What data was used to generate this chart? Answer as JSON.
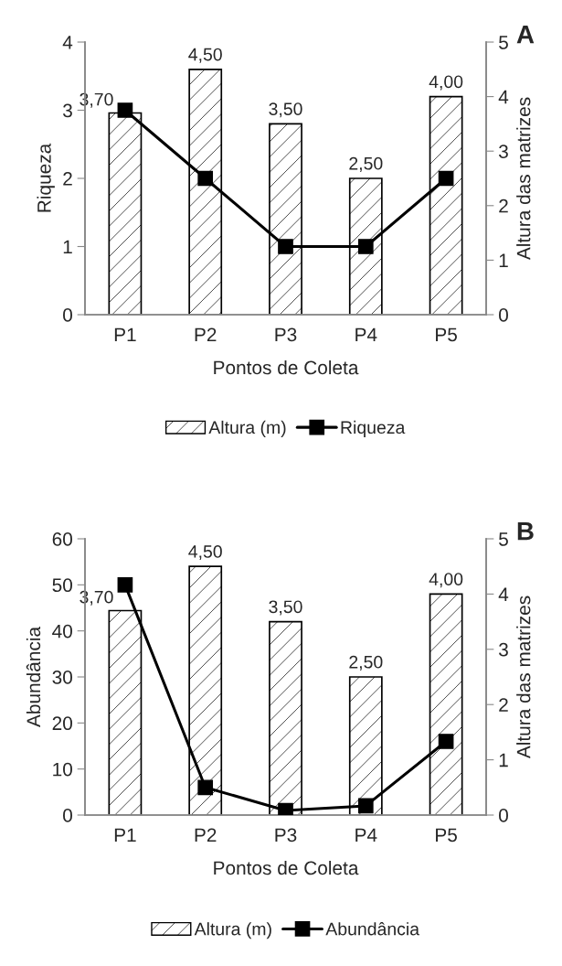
{
  "chart_data": [
    {
      "type": "bar",
      "title": "A",
      "categories": [
        "P1",
        "P2",
        "P3",
        "P4",
        "P5"
      ],
      "xlabel": "Pontos de Coleta",
      "ylabel": "Riqueza",
      "y2label": "Altura das matrizes",
      "ylim": [
        0,
        4
      ],
      "yticks": [
        0,
        1,
        2,
        3,
        4
      ],
      "y2lim": [
        0,
        5
      ],
      "y2ticks": [
        0,
        1,
        2,
        3,
        4,
        5
      ],
      "legend": "bottom",
      "grid": false,
      "series": [
        {
          "name": "Altura (m)",
          "axis": "y2",
          "color": "#000000",
          "values": [
            3.7,
            4.5,
            3.5,
            2.5,
            4.0
          ],
          "value_labels": [
            "3,70",
            "4,50",
            "3,50",
            "2,50",
            "4,00"
          ]
        },
        {
          "name": "Riqueza",
          "type": "line",
          "axis": "y",
          "color": "#000000",
          "marker": "square",
          "line_style": "solid",
          "values": [
            3,
            2,
            1,
            1,
            2
          ]
        }
      ]
    },
    {
      "type": "bar",
      "title": "B",
      "categories": [
        "P1",
        "P2",
        "P3",
        "P4",
        "P5"
      ],
      "xlabel": "Pontos de Coleta",
      "ylabel": "Abundância",
      "y2label": "Altura das matrizes",
      "ylim": [
        0,
        60
      ],
      "yticks": [
        0,
        10,
        20,
        30,
        40,
        50,
        60
      ],
      "y2lim": [
        0,
        5
      ],
      "y2ticks": [
        0,
        1,
        2,
        3,
        4,
        5
      ],
      "legend": "bottom",
      "grid": false,
      "series": [
        {
          "name": "Altura (m)",
          "axis": "y2",
          "color": "#000000",
          "values": [
            3.7,
            4.5,
            3.5,
            2.5,
            4.0
          ],
          "value_labels": [
            "3,70",
            "4,50",
            "3,50",
            "2,50",
            "4,00"
          ]
        },
        {
          "name": "Abundância",
          "type": "line",
          "axis": "y",
          "color": "#000000",
          "marker": "square",
          "line_style": "solid",
          "values": [
            50,
            6,
            1,
            2,
            16
          ]
        }
      ]
    }
  ]
}
